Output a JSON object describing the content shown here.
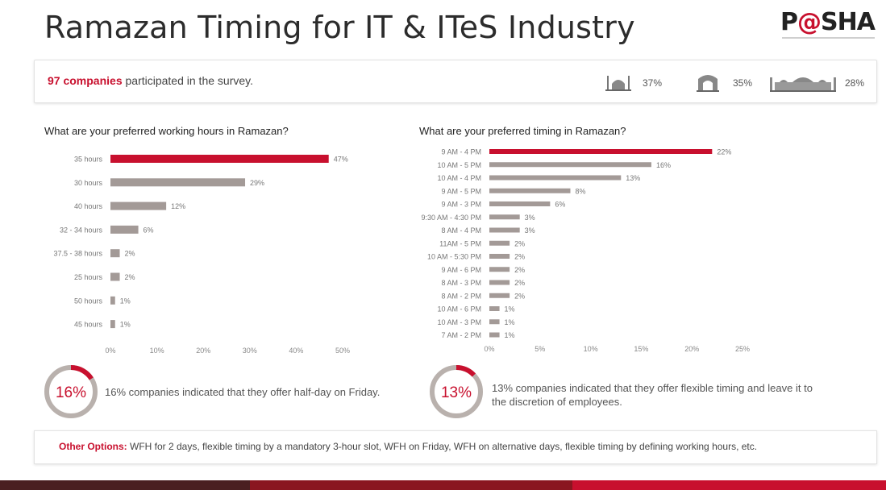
{
  "page": {
    "title": "Ramazan Timing for IT & ITeS Industry",
    "logo": {
      "prefix": "P",
      "at": "@",
      "suffix": "SHA"
    }
  },
  "summary": {
    "highlight": "97 companies",
    "text": " participated in the survey.",
    "stats": [
      {
        "icon": "mosque-icon",
        "value": "37%"
      },
      {
        "icon": "monument-icon",
        "value": "35%"
      },
      {
        "icon": "palace-icon",
        "value": "28%"
      }
    ]
  },
  "chart_data": [
    {
      "type": "bar",
      "orientation": "horizontal",
      "title": "What are your preferred working hours in Ramazan?",
      "categories": [
        "35 hours",
        "30 hours",
        "40 hours",
        "32 - 34 hours",
        "37.5 - 38 hours",
        "25 hours",
        "50 hours",
        "45 hours"
      ],
      "values": [
        47,
        29,
        12,
        6,
        2,
        2,
        1,
        1
      ],
      "value_labels": [
        "47%",
        "29%",
        "12%",
        "6%",
        "2%",
        "2%",
        "1%",
        "1%"
      ],
      "xlim": [
        0,
        50
      ],
      "xticks": [
        "0%",
        "10%",
        "20%",
        "30%",
        "40%",
        "50%"
      ],
      "highlight_index": 0
    },
    {
      "type": "bar",
      "orientation": "horizontal",
      "title": "What are your preferred timing in Ramazan?",
      "categories": [
        "9 AM - 4 PM",
        "10 AM - 5 PM",
        "10 AM - 4 PM",
        "9 AM - 5 PM",
        "9 AM - 3 PM",
        "9:30 AM - 4:30 PM",
        "8 AM - 4 PM",
        "11AM - 5 PM",
        "10 AM - 5:30 PM",
        "9 AM - 6 PM",
        "8 AM - 3 PM",
        "8 AM - 2 PM",
        "10 AM - 6 PM",
        "10 AM - 3 PM",
        "7 AM - 2 PM"
      ],
      "values": [
        22,
        16,
        13,
        8,
        6,
        3,
        3,
        2,
        2,
        2,
        2,
        2,
        1,
        1,
        1
      ],
      "value_labels": [
        "22%",
        "16%",
        "13%",
        "8%",
        "6%",
        "3%",
        "3%",
        "2%",
        "2%",
        "2%",
        "2%",
        "2%",
        "1%",
        "1%",
        "1%"
      ],
      "xlim": [
        0,
        25
      ],
      "xticks": [
        "0%",
        "5%",
        "10%",
        "15%",
        "20%",
        "25%"
      ],
      "highlight_index": 0
    }
  ],
  "rings": [
    {
      "value": 16,
      "label": "16%",
      "text": "16% companies indicated that they offer half-day on Friday."
    },
    {
      "value": 13,
      "label": "13%",
      "text": "13% companies indicated that they offer flexible timing and leave it to the discretion of employees."
    }
  ],
  "other_options": {
    "label": "Other Options:",
    "text": " WFH for 2 days, flexible timing by a mandatory 3-hour slot, WFH on Friday, WFH on alternative days, flexible timing by defining working hours, etc."
  },
  "colors": {
    "accent": "#c8102e",
    "bar_gray": "#a39a97",
    "ring_track": "#b9b1ad",
    "footer": [
      "#4a1f21",
      "#8a1620",
      "#c8102e"
    ]
  }
}
